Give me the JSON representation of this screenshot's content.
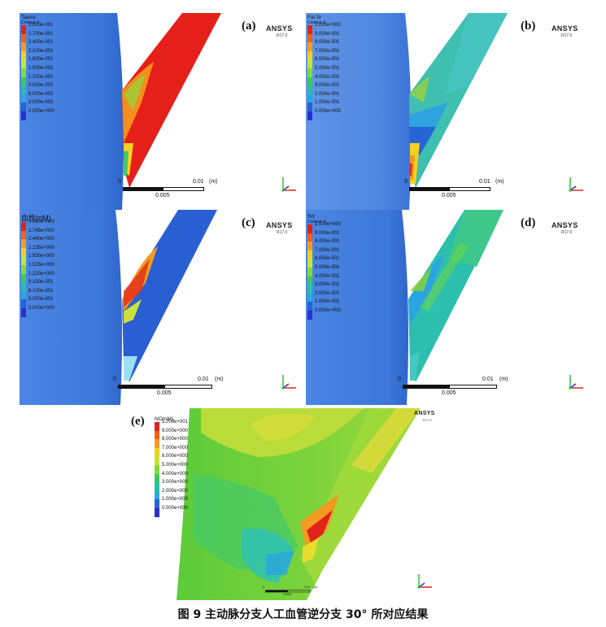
{
  "panels": {
    "a": {
      "label": "(a)",
      "legend_title": "Tawss",
      "legend_sub": "Contour 3",
      "values": [
        "3.000e-001",
        "2.700e-001",
        "2.400e-001",
        "2.100e-001",
        "1.800e-001",
        "1.500e-001",
        "1.200e-001",
        "9.000e-002",
        "6.000e-002",
        "3.000e-002",
        "0.000e+000"
      ],
      "scale_zero": "0",
      "scale_max": "0.01",
      "scale_unit": "(m)",
      "scale_mid": "0.005"
    },
    "b": {
      "label": "(b)",
      "legend_title": "Fai Sr",
      "legend_sub": "Contour 2",
      "values": [
        "1.000e+000",
        "9.000e-001",
        "8.000e-001",
        "7.000e-001",
        "6.000e-001",
        "5.000e-001",
        "4.000e-001",
        "3.000e-001",
        "2.000e-001",
        "1.000e-001",
        "0.000e+000"
      ],
      "scale_zero": "0",
      "scale_max": "0.01",
      "scale_unit": "(m)",
      "scale_mid": "0.005"
    },
    "c": {
      "label": "(c)",
      "legend_title": "血栓(nM)",
      "legend_sub": "",
      "values": [
        "3.050e+000",
        "2.745e+000",
        "2.440e+000",
        "2.135e+000",
        "1.830e+000",
        "1.525e+000",
        "1.220e+000",
        "9.150e-001",
        "6.100e-001",
        "3.050e-001",
        "0.000e+000"
      ],
      "scale_zero": "0",
      "scale_max": "0.01",
      "scale_unit": "(m)",
      "scale_mid": "0.005"
    },
    "d": {
      "label": "(d)",
      "legend_title": "Rrt",
      "legend_sub": "Contour 4",
      "values": [
        "1.000e+000",
        "9.000e-001",
        "8.000e-001",
        "7.000e-001",
        "6.000e-001",
        "5.000e-001",
        "4.000e-001",
        "3.000e-001",
        "2.000e-001",
        "1.000e-001",
        "0.000e+000"
      ],
      "scale_zero": "0",
      "scale_max": "0.01",
      "scale_unit": "(m)",
      "scale_mid": "0.005"
    },
    "e": {
      "label": "(e)",
      "legend_title": "NO(nM)",
      "legend_sub": "",
      "values": [
        "1.000e+001",
        "9.000e+000",
        "8.000e+000",
        "7.000e+000",
        "6.000e+000",
        "5.000e+000",
        "4.000e+000",
        "3.000e+000",
        "2.000e+000",
        "1.000e+000",
        "0.000e+000"
      ],
      "scale_zero": "0",
      "scale_max": "0.01",
      "scale_unit": "(m)",
      "scale_mid": "0.005"
    }
  },
  "brand": {
    "name": "ANSYS",
    "version": "R17.0"
  },
  "colormap": [
    "#e0231c",
    "#f2601a",
    "#f59b21",
    "#f3d01f",
    "#c6e43a",
    "#82da3c",
    "#40c95a",
    "#2bbfa8",
    "#2aa8e0",
    "#2563d6",
    "#2a2fd0"
  ],
  "caption": "图 9  主动脉分支人工血管逆分支 30°  所对应结果"
}
